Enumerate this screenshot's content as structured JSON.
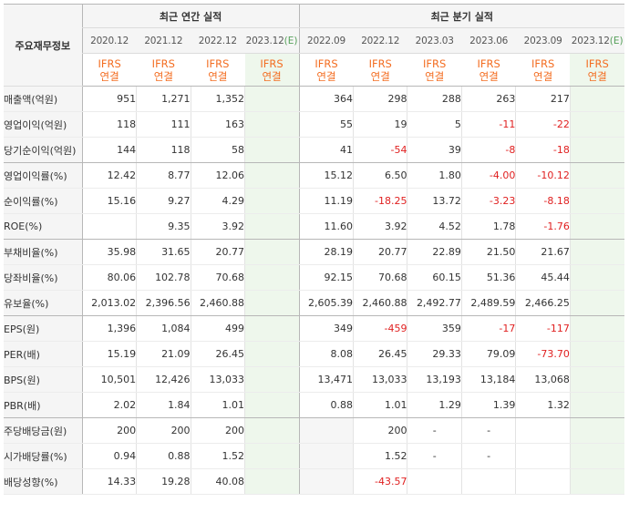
{
  "table": {
    "row_header_label": "주요재무정보",
    "groups": {
      "annual": "최근 연간 실적",
      "quarterly": "최근 분기 실적"
    },
    "annual_periods": [
      {
        "date": "2020.12",
        "mark": ""
      },
      {
        "date": "2021.12",
        "mark": ""
      },
      {
        "date": "2022.12",
        "mark": ""
      },
      {
        "date": "2023.12",
        "mark": "(E)"
      }
    ],
    "quarter_periods": [
      {
        "date": "2022.09",
        "mark": ""
      },
      {
        "date": "2022.12",
        "mark": ""
      },
      {
        "date": "2023.03",
        "mark": ""
      },
      {
        "date": "2023.06",
        "mark": ""
      },
      {
        "date": "2023.09",
        "mark": ""
      },
      {
        "date": "2023.12",
        "mark": "(E)"
      }
    ],
    "standard": {
      "line1": "IFRS",
      "line2": "연결"
    },
    "rows": [
      {
        "label": "매출액(억원)",
        "annual": [
          "951",
          "1,271",
          "1,352",
          ""
        ],
        "quarter": [
          "364",
          "298",
          "288",
          "263",
          "217",
          ""
        ]
      },
      {
        "label": "영업이익(억원)",
        "annual": [
          "118",
          "111",
          "163",
          ""
        ],
        "quarter": [
          "55",
          "19",
          "5",
          "-11",
          "-22",
          ""
        ]
      },
      {
        "label": "당기순이익(억원)",
        "annual": [
          "144",
          "118",
          "58",
          ""
        ],
        "quarter": [
          "41",
          "-54",
          "39",
          "-8",
          "-18",
          ""
        ]
      },
      {
        "label": "영업이익률(%)",
        "annual": [
          "12.42",
          "8.77",
          "12.06",
          ""
        ],
        "quarter": [
          "15.12",
          "6.50",
          "1.80",
          "-4.00",
          "-10.12",
          ""
        ]
      },
      {
        "label": "순이익률(%)",
        "annual": [
          "15.16",
          "9.27",
          "4.29",
          ""
        ],
        "quarter": [
          "11.19",
          "-18.25",
          "13.72",
          "-3.23",
          "-8.18",
          ""
        ]
      },
      {
        "label": "ROE(%)",
        "annual": [
          "",
          "9.35",
          "3.92",
          ""
        ],
        "quarter": [
          "11.60",
          "3.92",
          "4.52",
          "1.78",
          "-1.76",
          ""
        ]
      },
      {
        "label": "부채비율(%)",
        "annual": [
          "35.98",
          "31.65",
          "20.77",
          ""
        ],
        "quarter": [
          "28.19",
          "20.77",
          "22.89",
          "21.50",
          "21.67",
          ""
        ]
      },
      {
        "label": "당좌비율(%)",
        "annual": [
          "80.06",
          "102.78",
          "70.68",
          ""
        ],
        "quarter": [
          "92.15",
          "70.68",
          "60.15",
          "51.36",
          "45.44",
          ""
        ]
      },
      {
        "label": "유보율(%)",
        "annual": [
          "2,013.02",
          "2,396.56",
          "2,460.88",
          ""
        ],
        "quarter": [
          "2,605.39",
          "2,460.88",
          "2,492.77",
          "2,489.59",
          "2,466.25",
          ""
        ]
      },
      {
        "label": "EPS(원)",
        "annual": [
          "1,396",
          "1,084",
          "499",
          ""
        ],
        "quarter": [
          "349",
          "-459",
          "359",
          "-17",
          "-117",
          ""
        ]
      },
      {
        "label": "PER(배)",
        "annual": [
          "15.19",
          "21.09",
          "26.45",
          ""
        ],
        "quarter": [
          "8.08",
          "26.45",
          "29.33",
          "79.09",
          "-73.70",
          ""
        ]
      },
      {
        "label": "BPS(원)",
        "annual": [
          "10,501",
          "12,426",
          "13,033",
          ""
        ],
        "quarter": [
          "13,471",
          "13,033",
          "13,193",
          "13,184",
          "13,068",
          ""
        ]
      },
      {
        "label": "PBR(배)",
        "annual": [
          "2.02",
          "1.84",
          "1.01",
          ""
        ],
        "quarter": [
          "0.88",
          "1.01",
          "1.29",
          "1.39",
          "1.32",
          ""
        ]
      },
      {
        "label": "주당배당금(원)",
        "annual": [
          "200",
          "200",
          "200",
          ""
        ],
        "quarter": [
          null,
          "200",
          "-",
          "-",
          "",
          ""
        ]
      },
      {
        "label": "시가배당률(%)",
        "annual": [
          "0.94",
          "0.88",
          "1.52",
          ""
        ],
        "quarter": [
          null,
          "1.52",
          "-",
          "-",
          "",
          ""
        ]
      },
      {
        "label": "배당성향(%)",
        "annual": [
          "14.33",
          "19.28",
          "40.08",
          ""
        ],
        "quarter": [
          null,
          "-43.57",
          "",
          "",
          "",
          ""
        ]
      }
    ],
    "group_break_after": [
      2,
      5,
      8,
      12
    ],
    "colors": {
      "negative": "#e02020",
      "ifrs": "#f36d21",
      "estimate_bg": "#eef7ec",
      "estimate_mark": "#56a05a",
      "header_bg": "#f5f5f5"
    }
  }
}
